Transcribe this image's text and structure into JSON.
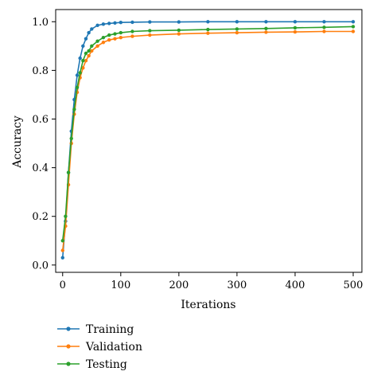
{
  "chart_data": {
    "type": "line",
    "xlabel": "Iterations",
    "ylabel": "Accuracy",
    "xlim": [
      -12,
      515
    ],
    "ylim": [
      -0.03,
      1.05
    ],
    "xticks": [
      0,
      100,
      200,
      300,
      400,
      500
    ],
    "yticks": [
      0.0,
      0.2,
      0.4,
      0.6,
      0.8,
      1.0
    ],
    "ytick_labels": [
      "0.0",
      "0.2",
      "0.4",
      "0.6",
      "0.8",
      "1.0"
    ],
    "grid": false,
    "legend_position": "bottom-left, outside plot",
    "x": [
      0,
      5,
      10,
      15,
      20,
      25,
      30,
      35,
      40,
      45,
      50,
      60,
      70,
      80,
      90,
      100,
      120,
      150,
      200,
      250,
      300,
      350,
      400,
      450,
      500
    ],
    "series": [
      {
        "name": "Training",
        "color": "#1f77b4",
        "values": [
          0.03,
          0.18,
          0.38,
          0.55,
          0.68,
          0.78,
          0.85,
          0.9,
          0.93,
          0.955,
          0.97,
          0.985,
          0.99,
          0.993,
          0.995,
          0.997,
          0.998,
          0.999,
          0.999,
          1.0,
          1.0,
          1.0,
          1.0,
          1.0,
          1.0
        ]
      },
      {
        "name": "Validation",
        "color": "#ff7f0e",
        "values": [
          0.06,
          0.16,
          0.33,
          0.5,
          0.62,
          0.71,
          0.77,
          0.81,
          0.84,
          0.86,
          0.88,
          0.9,
          0.915,
          0.925,
          0.93,
          0.935,
          0.94,
          0.945,
          0.95,
          0.953,
          0.955,
          0.957,
          0.958,
          0.96,
          0.96
        ]
      },
      {
        "name": "Testing",
        "color": "#2ca02c",
        "values": [
          0.1,
          0.2,
          0.38,
          0.52,
          0.64,
          0.73,
          0.79,
          0.84,
          0.87,
          0.88,
          0.9,
          0.92,
          0.935,
          0.945,
          0.95,
          0.955,
          0.96,
          0.963,
          0.965,
          0.968,
          0.97,
          0.972,
          0.975,
          0.977,
          0.98
        ]
      }
    ]
  }
}
